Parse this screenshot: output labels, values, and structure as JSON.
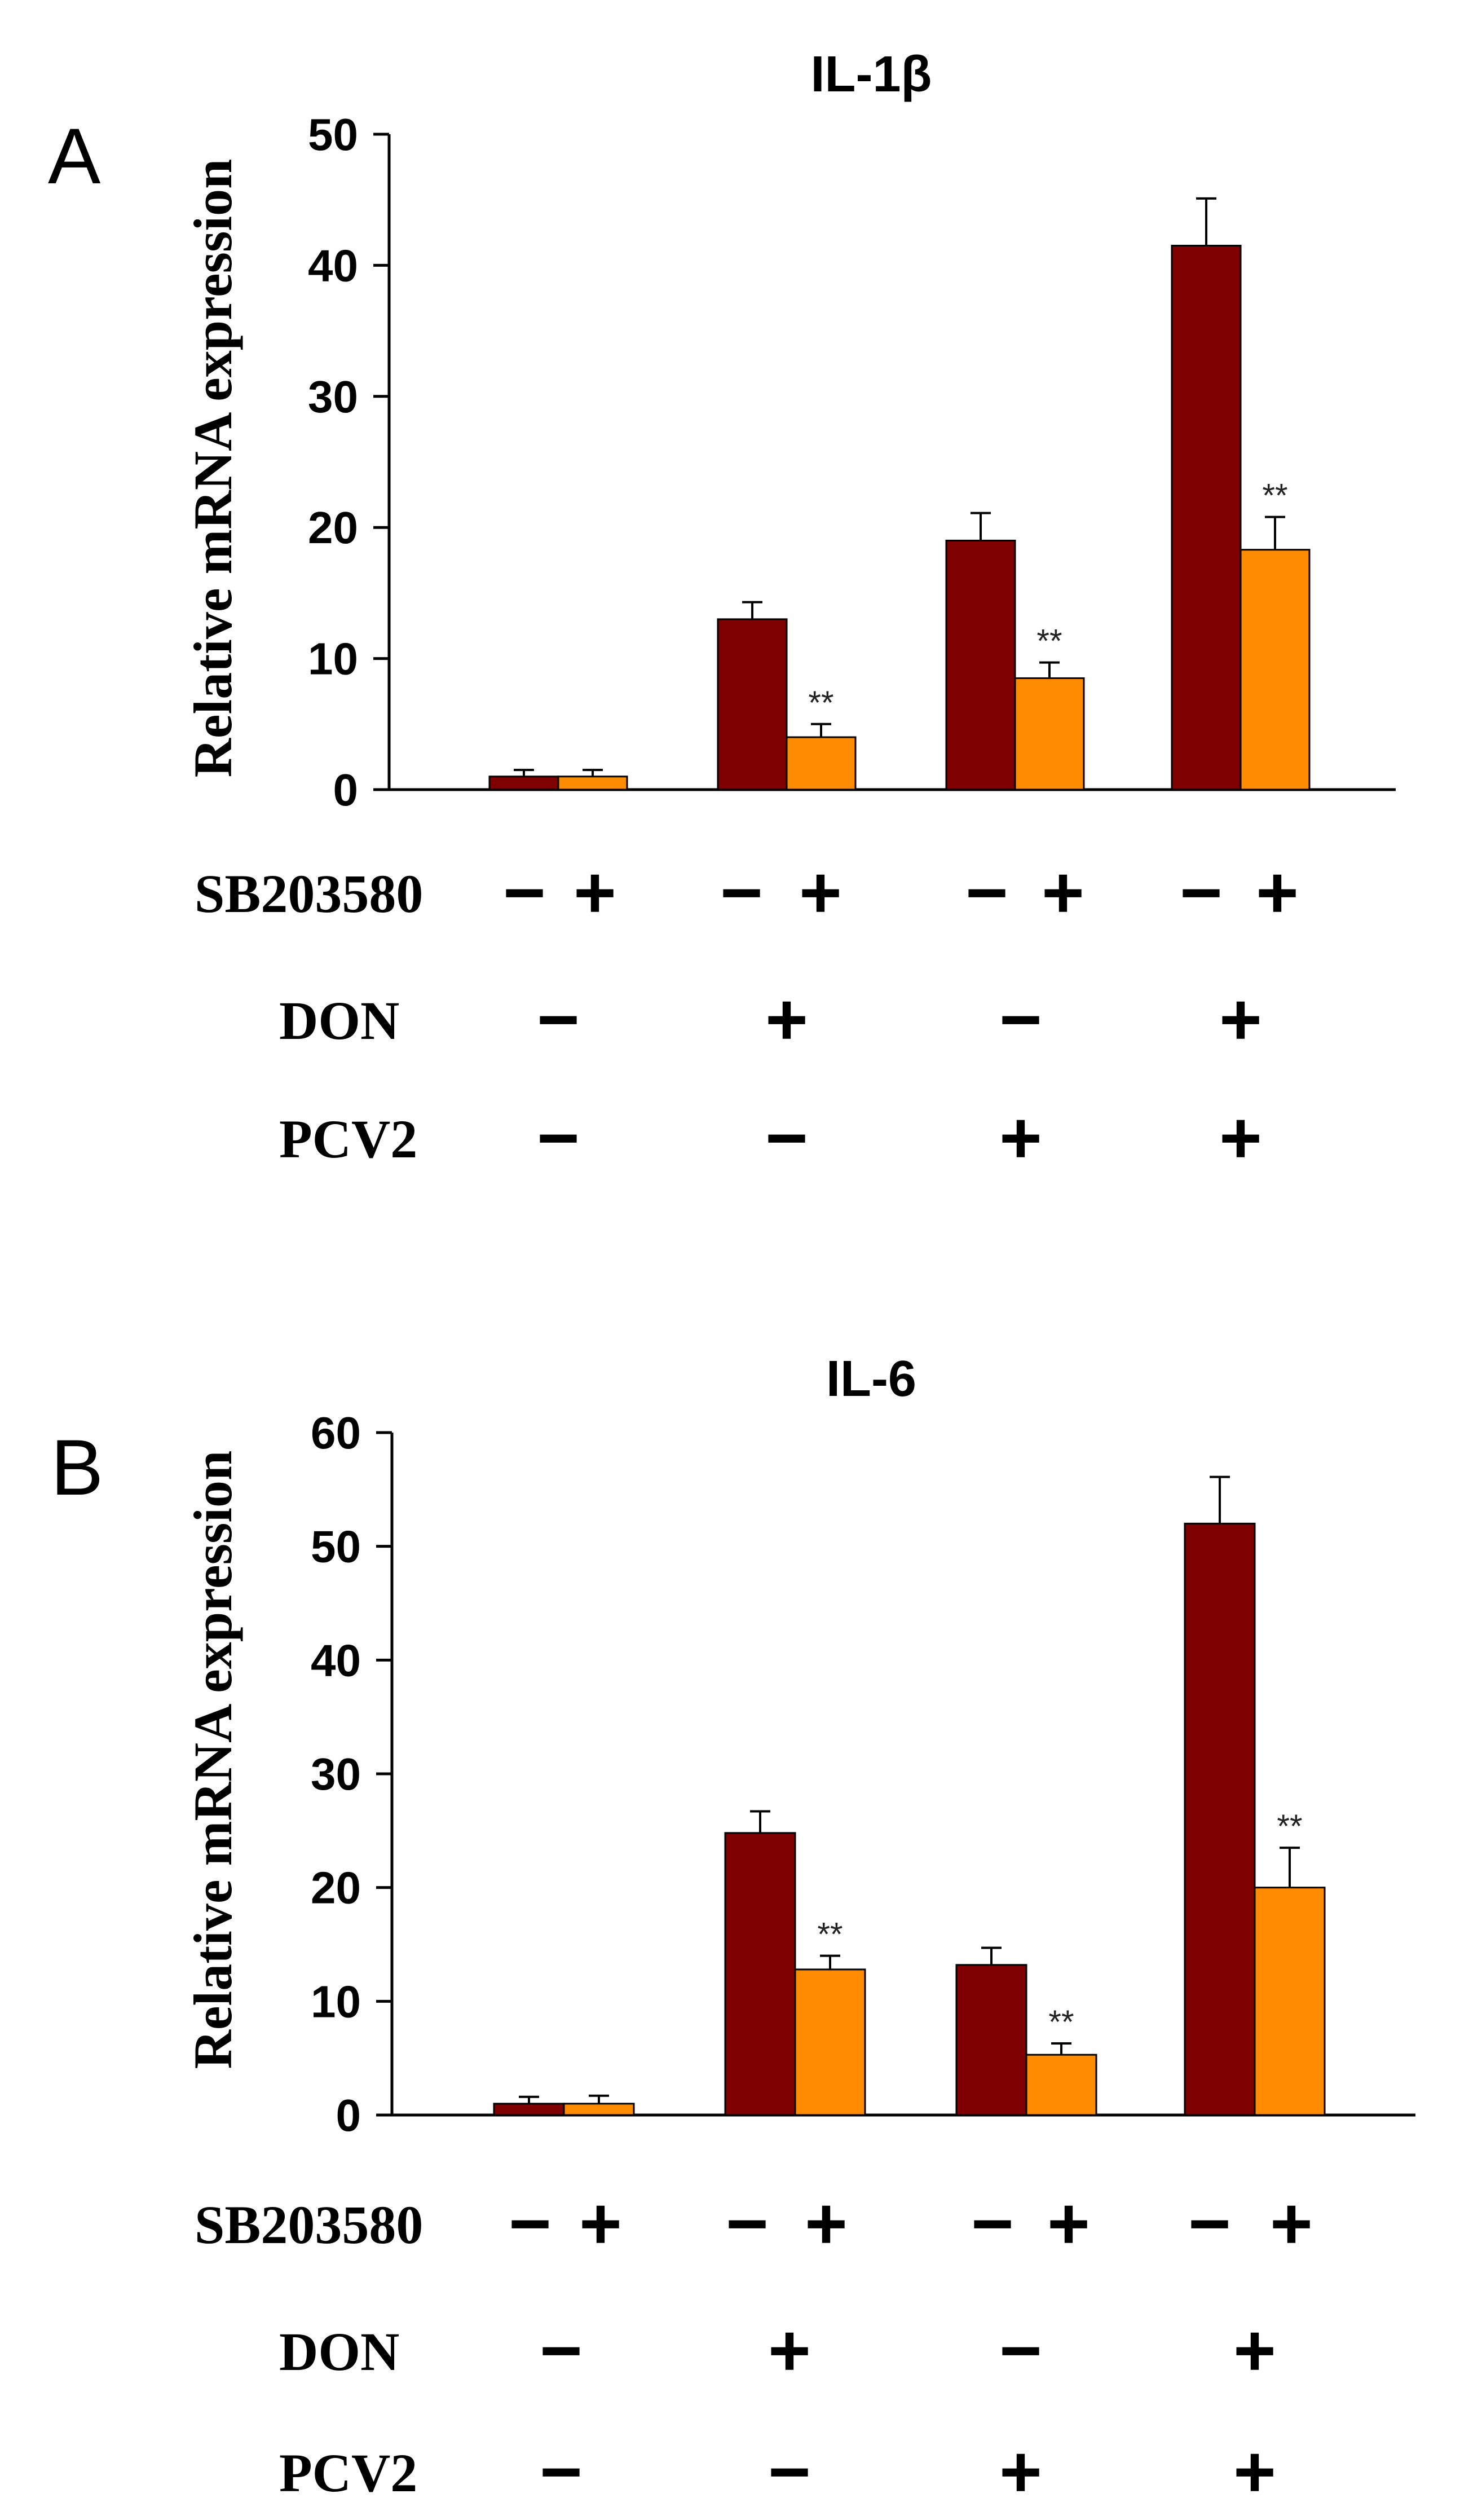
{
  "chart_data": [
    {
      "panel": "A",
      "type": "bar",
      "title": "IL-1β",
      "ylabel": "Relative mRNA expression",
      "ylim": [
        0,
        50
      ],
      "yticks": [
        "0",
        "10",
        "20",
        "30",
        "40",
        "50"
      ],
      "series": [
        {
          "name": "SB203580 -",
          "color": "#7f0000",
          "values": [
            1.0,
            13.0,
            19.0,
            41.5
          ],
          "errors": [
            0.5,
            1.3,
            2.1,
            3.6
          ]
        },
        {
          "name": "SB203580 +",
          "color": "#ff8c00",
          "values": [
            1.0,
            4.0,
            8.5,
            18.3
          ],
          "errors": [
            0.5,
            1.0,
            1.2,
            2.5
          ]
        }
      ],
      "significance": [
        "",
        "**",
        "**",
        "**"
      ],
      "conditions": [
        {
          "label": "SB203580",
          "signs": [
            [
              "-",
              "+"
            ],
            [
              "-",
              "+"
            ],
            [
              "-",
              "+"
            ],
            [
              "-",
              "+"
            ]
          ]
        },
        {
          "label": "DON",
          "signs": [
            "-",
            "+",
            "-",
            "+"
          ]
        },
        {
          "label": "PCV2",
          "signs": [
            "-",
            "-",
            "+",
            "+"
          ]
        }
      ]
    },
    {
      "panel": "B",
      "type": "bar",
      "title": "IL-6",
      "ylabel": "Relative mRNA expression",
      "ylim": [
        0,
        60
      ],
      "yticks": [
        "0",
        "10",
        "20",
        "30",
        "40",
        "50",
        "60"
      ],
      "series": [
        {
          "name": "SB203580 -",
          "color": "#7f0000",
          "values": [
            1.0,
            24.8,
            13.2,
            52.0
          ],
          "errors": [
            0.6,
            1.9,
            1.5,
            4.1
          ]
        },
        {
          "name": "SB203580 +",
          "color": "#ff8c00",
          "values": [
            1.0,
            12.8,
            5.3,
            20.0
          ],
          "errors": [
            0.7,
            1.2,
            1.0,
            3.5
          ]
        }
      ],
      "significance": [
        "",
        "**",
        "**",
        "**"
      ],
      "conditions": [
        {
          "label": "SB203580",
          "signs": [
            [
              "-",
              "+"
            ],
            [
              "-",
              "+"
            ],
            [
              "-",
              "+"
            ],
            [
              "-",
              "+"
            ]
          ]
        },
        {
          "label": "DON",
          "signs": [
            "-",
            "+",
            "-",
            "+"
          ]
        },
        {
          "label": "PCV2",
          "signs": [
            "-",
            "-",
            "+",
            "+"
          ]
        }
      ]
    }
  ]
}
